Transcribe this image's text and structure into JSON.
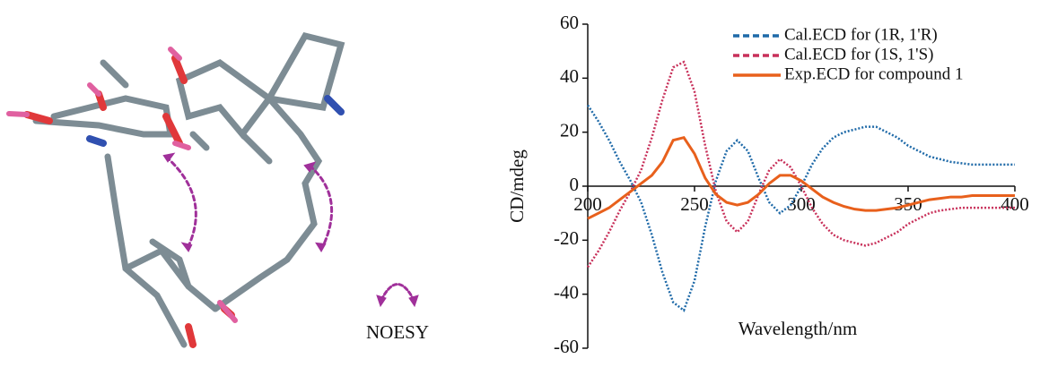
{
  "noesy_label": "NOESY",
  "chart_data": {
    "type": "line",
    "x_label": "Wavelength/nm",
    "y_label": "CD/mdeg",
    "xlim": [
      200,
      400
    ],
    "xticks": [
      200,
      250,
      300,
      350,
      400
    ],
    "ylim": [
      -60,
      60
    ],
    "yticks": [
      -60,
      -40,
      -20,
      0,
      20,
      40,
      60
    ],
    "x": [
      200,
      205,
      210,
      215,
      220,
      225,
      230,
      235,
      240,
      245,
      250,
      255,
      260,
      265,
      270,
      275,
      280,
      285,
      290,
      295,
      300,
      305,
      310,
      315,
      320,
      325,
      330,
      335,
      340,
      345,
      350,
      355,
      360,
      365,
      370,
      375,
      380,
      385,
      390,
      395,
      400
    ],
    "series": [
      {
        "name": "Cal.ECD for (1R, 1'R)",
        "color": "#1f6aa8",
        "style": "dotted",
        "values": [
          30,
          24,
          17,
          9,
          2,
          -6,
          -18,
          -32,
          -43,
          -46,
          -35,
          -15,
          2,
          13,
          17,
          13,
          3,
          -6,
          -10,
          -7,
          0,
          8,
          14,
          18,
          20,
          21,
          22,
          22,
          20,
          18,
          15,
          13,
          11,
          10,
          9,
          8.5,
          8,
          8,
          8,
          8,
          8
        ]
      },
      {
        "name": "Cal.ECD for (1S, 1'S)",
        "color": "#c8305a",
        "style": "dotted",
        "values": [
          -30,
          -24,
          -17,
          -9,
          -2,
          6,
          18,
          32,
          44,
          46,
          35,
          15,
          -2,
          -13,
          -17,
          -13,
          -3,
          6,
          10,
          7,
          0,
          -8,
          -14,
          -18,
          -20,
          -21,
          -22,
          -21,
          -19,
          -17,
          -14,
          -12,
          -10,
          -9,
          -8.5,
          -8,
          -8,
          -8,
          -8,
          -8,
          -8
        ]
      },
      {
        "name": "Exp.ECD for compound 1",
        "color": "#e8601c",
        "style": "solid",
        "values": [
          -12,
          -10,
          -8,
          -5,
          -2,
          1,
          4,
          9,
          17,
          18,
          12,
          3,
          -3,
          -6,
          -7,
          -6,
          -3,
          1,
          4,
          4,
          2,
          -1,
          -4,
          -6,
          -7.5,
          -8.5,
          -9,
          -9,
          -8.5,
          -8,
          -7,
          -6,
          -5,
          -4.5,
          -4,
          -4,
          -3.5,
          -3.5,
          -3.5,
          -3.5,
          -3.5
        ]
      }
    ]
  }
}
